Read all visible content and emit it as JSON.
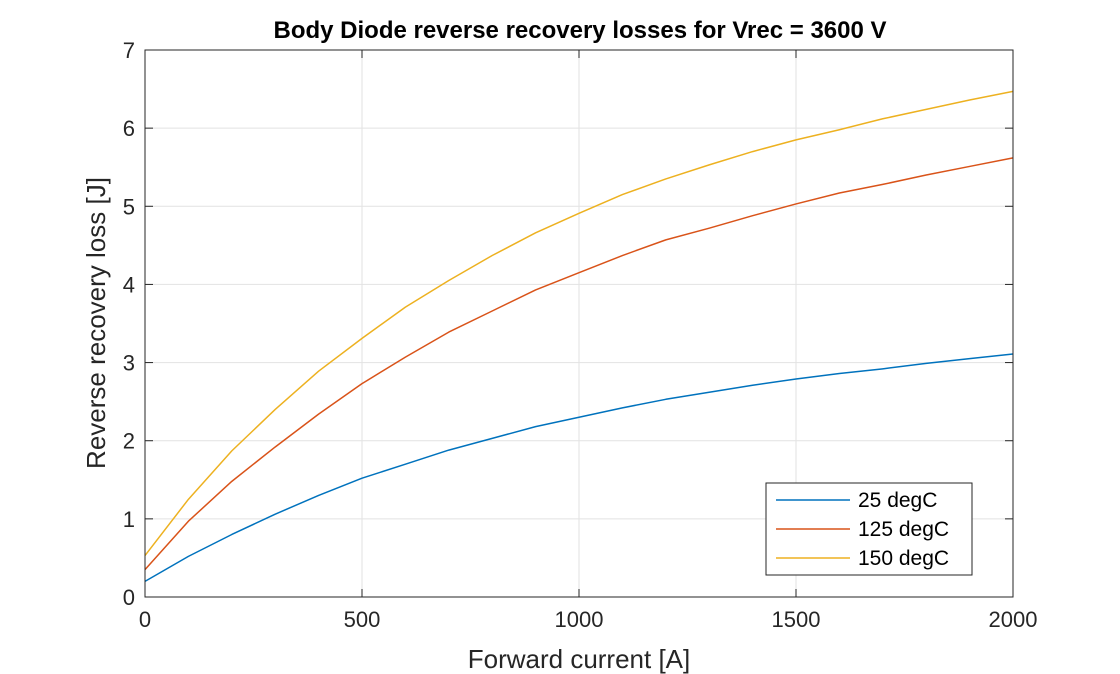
{
  "chart_data": {
    "type": "line",
    "title": "Body Diode reverse recovery losses for Vrec = 3600 V",
    "xlabel": "Forward current [A]",
    "ylabel": "Reverse recovery loss [J]",
    "xlim": [
      0,
      2000
    ],
    "ylim": [
      0,
      7
    ],
    "xticks": [
      0,
      500,
      1000,
      1500,
      2000
    ],
    "yticks": [
      0,
      1,
      2,
      3,
      4,
      5,
      6,
      7
    ],
    "grid": true,
    "legend_position": "bottom-right",
    "x": [
      0,
      100,
      200,
      300,
      400,
      500,
      600,
      700,
      800,
      900,
      1000,
      1100,
      1200,
      1300,
      1400,
      1500,
      1600,
      1700,
      1800,
      1900,
      2000
    ],
    "series": [
      {
        "name": "25 degC",
        "color": "#0072BD",
        "values": [
          0.2,
          0.52,
          0.8,
          1.06,
          1.3,
          1.52,
          1.7,
          1.88,
          2.03,
          2.18,
          2.3,
          2.42,
          2.53,
          2.62,
          2.71,
          2.79,
          2.86,
          2.92,
          2.99,
          3.05,
          3.11
        ]
      },
      {
        "name": "125 degC",
        "color": "#D95319",
        "values": [
          0.35,
          0.97,
          1.48,
          1.92,
          2.34,
          2.73,
          3.07,
          3.39,
          3.66,
          3.93,
          4.15,
          4.37,
          4.57,
          4.72,
          4.88,
          5.03,
          5.17,
          5.28,
          5.4,
          5.51,
          5.62
        ]
      },
      {
        "name": "150 degC",
        "color": "#EDB120",
        "values": [
          0.53,
          1.25,
          1.87,
          2.4,
          2.89,
          3.31,
          3.71,
          4.05,
          4.37,
          4.66,
          4.91,
          5.15,
          5.35,
          5.53,
          5.7,
          5.85,
          5.98,
          6.12,
          6.24,
          6.36,
          6.47
        ]
      }
    ]
  }
}
